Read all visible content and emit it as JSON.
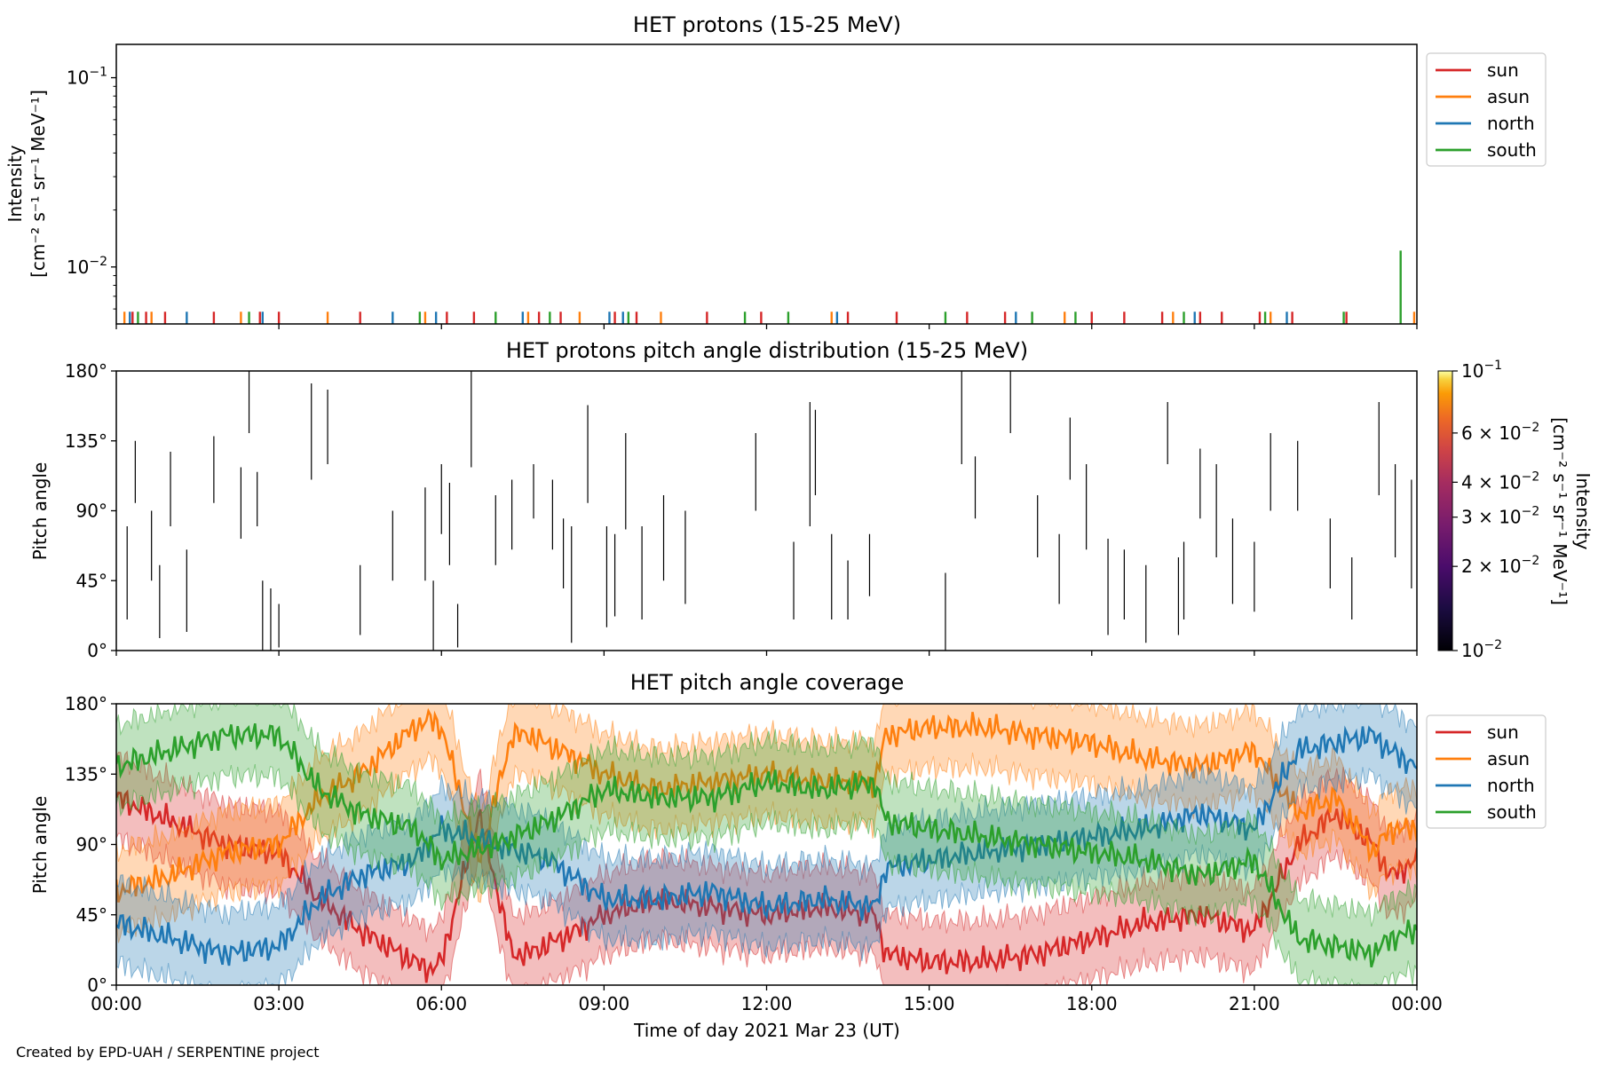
{
  "panels": [
    {
      "title": "HET protons (15-25 MeV)",
      "ylabel_line1": "Intensity",
      "ylabel_line2": "[cm⁻² s⁻¹ sr⁻¹ MeV⁻¹]",
      "yticks": [
        {
          "value": 0.1,
          "base": "10",
          "exp": "−1"
        },
        {
          "value": 0.01,
          "base": "10",
          "exp": "−2"
        }
      ],
      "legend": [
        "sun",
        "asun",
        "north",
        "south"
      ]
    },
    {
      "title": "HET protons pitch angle distribution (15-25 MeV)",
      "ylabel": "Pitch angle",
      "yticks": [
        "0°",
        "45°",
        "90°",
        "135°",
        "180°"
      ],
      "colorbar": {
        "label_line1": "Intensity",
        "label_line2": "[cm⁻² s⁻¹ sr⁻¹ MeV⁻¹]",
        "ticks": [
          {
            "value": 0.1,
            "text": "10",
            "exp": "−1"
          },
          {
            "value": 0.06,
            "text": "6 × 10",
            "exp": "−2"
          },
          {
            "value": 0.04,
            "text": "4 × 10",
            "exp": "−2"
          },
          {
            "value": 0.03,
            "text": "3 × 10",
            "exp": "−2"
          },
          {
            "value": 0.02,
            "text": "2 × 10",
            "exp": "−2"
          },
          {
            "value": 0.01,
            "text": "10",
            "exp": "−2"
          }
        ],
        "colormap": "inferno",
        "range": [
          0.01,
          0.1
        ]
      }
    },
    {
      "title": "HET pitch angle coverage",
      "ylabel": "Pitch angle",
      "yticks": [
        "0°",
        "45°",
        "90°",
        "135°",
        "180°"
      ],
      "legend": [
        "sun",
        "asun",
        "north",
        "south"
      ]
    }
  ],
  "xlabel": "Time of day 2021 Mar 23 (UT)",
  "xticks": [
    "00:00",
    "03:00",
    "06:00",
    "09:00",
    "12:00",
    "15:00",
    "18:00",
    "21:00",
    "00:00"
  ],
  "credit": "Created by EPD-UAH / SERPENTINE project",
  "colors": {
    "sun": "#d62728",
    "asun": "#ff7f0e",
    "north": "#1f77b4",
    "south": "#2ca02c"
  },
  "chart_data": [
    {
      "type": "line",
      "title": "HET protons (15-25 MeV)",
      "ylabel": "Intensity [cm⁻² s⁻¹ sr⁻¹ MeV⁻¹]",
      "yscale": "log",
      "ylim": [
        0.005,
        0.15
      ],
      "xlim": [
        0,
        24
      ],
      "x_unit": "hours UT",
      "series": [
        {
          "name": "sun",
          "x": [
            0.3,
            0.55,
            0.9,
            1.8,
            2.65,
            3.0,
            4.5,
            6.1,
            6.6,
            7.8,
            8.2,
            9.2,
            9.6,
            10.9,
            11.9,
            13.5,
            14.4,
            15.7,
            16.4,
            18.0,
            18.6,
            19.3,
            20.0,
            20.4,
            21.1,
            21.7,
            22.7
          ],
          "y": [
            0.0058,
            0.0058,
            0.0058,
            0.0058,
            0.0058,
            0.0058,
            0.0058,
            0.0058,
            0.0058,
            0.0058,
            0.0058,
            0.0058,
            0.0058,
            0.0058,
            0.0058,
            0.0058,
            0.0058,
            0.0058,
            0.0058,
            0.0058,
            0.0058,
            0.0058,
            0.0058,
            0.0058,
            0.0058,
            0.0058,
            0.0058
          ]
        },
        {
          "name": "asun",
          "x": [
            0.15,
            0.65,
            2.3,
            3.9,
            5.7,
            7.6,
            8.55,
            10.05,
            13.2,
            17.5,
            19.5,
            21.3,
            23.95
          ],
          "y": [
            0.0058,
            0.0058,
            0.0058,
            0.0058,
            0.0058,
            0.0058,
            0.0058,
            0.0058,
            0.0058,
            0.0058,
            0.0058,
            0.0058,
            0.0058
          ]
        },
        {
          "name": "north",
          "x": [
            0.25,
            1.3,
            2.7,
            5.1,
            5.9,
            7.5,
            9.1,
            9.35,
            13.3,
            16.6,
            19.9,
            21.6
          ],
          "y": [
            0.0058,
            0.0058,
            0.0058,
            0.0058,
            0.0058,
            0.0058,
            0.0058,
            0.0058,
            0.0058,
            0.0058,
            0.0058,
            0.0058
          ]
        },
        {
          "name": "south",
          "x": [
            0.4,
            2.45,
            5.6,
            7.0,
            8.0,
            9.45,
            11.6,
            12.4,
            15.3,
            16.9,
            17.7,
            19.7,
            21.2,
            22.65,
            23.7
          ],
          "y": [
            0.0058,
            0.0058,
            0.0058,
            0.0058,
            0.0058,
            0.0058,
            0.0058,
            0.0058,
            0.0058,
            0.0058,
            0.0058,
            0.0058,
            0.0058,
            0.0058,
            0.0122
          ]
        }
      ]
    },
    {
      "type": "heatmap",
      "title": "HET protons pitch angle distribution (15-25 MeV)",
      "ylabel": "Pitch angle",
      "ylim": [
        0,
        180
      ],
      "xlim": [
        0,
        24
      ],
      "x_unit": "hours UT",
      "segments": [
        [
          0.2,
          20,
          80
        ],
        [
          0.35,
          95,
          135
        ],
        [
          0.65,
          45,
          90
        ],
        [
          0.8,
          8,
          55
        ],
        [
          1.0,
          80,
          128
        ],
        [
          1.3,
          12,
          65
        ],
        [
          1.8,
          95,
          138
        ],
        [
          2.3,
          72,
          118
        ],
        [
          2.45,
          140,
          180
        ],
        [
          2.6,
          80,
          115
        ],
        [
          2.7,
          0,
          45
        ],
        [
          2.85,
          0,
          40
        ],
        [
          3.0,
          2,
          30
        ],
        [
          3.6,
          110,
          172
        ],
        [
          3.9,
          120,
          168
        ],
        [
          4.5,
          10,
          55
        ],
        [
          5.1,
          45,
          90
        ],
        [
          5.7,
          45,
          105
        ],
        [
          5.85,
          0,
          45
        ],
        [
          6.0,
          75,
          120
        ],
        [
          6.15,
          55,
          108
        ],
        [
          6.3,
          2,
          30
        ],
        [
          6.55,
          118,
          180
        ],
        [
          7.0,
          55,
          100
        ],
        [
          7.3,
          65,
          110
        ],
        [
          7.7,
          85,
          120
        ],
        [
          8.05,
          65,
          110
        ],
        [
          8.25,
          40,
          85
        ],
        [
          8.4,
          5,
          80
        ],
        [
          8.7,
          95,
          158
        ],
        [
          9.05,
          15,
          80
        ],
        [
          9.2,
          22,
          75
        ],
        [
          9.4,
          78,
          140
        ],
        [
          9.7,
          20,
          80
        ],
        [
          10.1,
          45,
          100
        ],
        [
          10.5,
          30,
          90
        ],
        [
          11.8,
          90,
          140
        ],
        [
          12.5,
          20,
          70
        ],
        [
          12.8,
          80,
          160
        ],
        [
          12.9,
          100,
          155
        ],
        [
          13.2,
          20,
          75
        ],
        [
          13.5,
          20,
          58
        ],
        [
          13.9,
          35,
          75
        ],
        [
          15.3,
          0,
          50
        ],
        [
          15.6,
          120,
          180
        ],
        [
          15.85,
          85,
          125
        ],
        [
          16.5,
          140,
          180
        ],
        [
          17.0,
          60,
          100
        ],
        [
          17.4,
          30,
          75
        ],
        [
          17.6,
          110,
          150
        ],
        [
          17.9,
          65,
          120
        ],
        [
          18.3,
          10,
          72
        ],
        [
          18.6,
          20,
          65
        ],
        [
          19.0,
          5,
          55
        ],
        [
          19.4,
          120,
          160
        ],
        [
          19.6,
          10,
          60
        ],
        [
          19.7,
          20,
          70
        ],
        [
          20.0,
          85,
          130
        ],
        [
          20.3,
          60,
          120
        ],
        [
          20.6,
          30,
          85
        ],
        [
          21.0,
          25,
          70
        ],
        [
          21.3,
          90,
          140
        ],
        [
          21.8,
          90,
          135
        ],
        [
          22.4,
          40,
          85
        ],
        [
          22.8,
          20,
          60
        ],
        [
          23.3,
          100,
          160
        ],
        [
          23.6,
          60,
          120
        ],
        [
          23.9,
          40,
          110
        ]
      ]
    },
    {
      "type": "line",
      "title": "HET pitch angle coverage",
      "ylabel": "Pitch angle",
      "ylim": [
        0,
        180
      ],
      "xlim": [
        0,
        24
      ],
      "x_unit": "hours UT",
      "bands_half_width_deg": 26,
      "series": [
        {
          "name": "sun",
          "x": [
            0,
            1,
            2,
            3,
            3.75,
            4.5,
            5.5,
            5.8,
            6,
            6.7,
            7.3,
            7.6,
            8.5,
            9.0,
            10,
            11,
            12,
            13,
            14,
            14.2,
            15,
            16,
            17,
            18,
            19,
            20,
            21,
            21.8,
            22.5,
            23.2,
            23.5,
            24
          ],
          "y": [
            120,
            105,
            90,
            85,
            55,
            35,
            15,
            10,
            15,
            110,
            20,
            20,
            35,
            45,
            55,
            50,
            45,
            50,
            45,
            20,
            15,
            15,
            20,
            30,
            40,
            45,
            35,
            90,
            110,
            90,
            70,
            80
          ]
        },
        {
          "name": "asun",
          "x": [
            0,
            1,
            2,
            3,
            3.75,
            4.5,
            5.5,
            5.8,
            6,
            6.7,
            7.3,
            7.6,
            8.5,
            9.0,
            10,
            11,
            12,
            13,
            14,
            14.2,
            15,
            16,
            17,
            18,
            19,
            20,
            21,
            21.8,
            22.5,
            23.2,
            23.5,
            24
          ],
          "y": [
            60,
            70,
            85,
            90,
            120,
            135,
            165,
            170,
            165,
            80,
            160,
            160,
            145,
            135,
            125,
            130,
            135,
            130,
            130,
            160,
            165,
            165,
            160,
            155,
            145,
            140,
            150,
            110,
            120,
            85,
            100,
            100
          ]
        },
        {
          "name": "north",
          "x": [
            0,
            1,
            2,
            3,
            3.75,
            4.5,
            5.5,
            6.0,
            7.0,
            8.0,
            9.0,
            10,
            11,
            12,
            13,
            14,
            14.2,
            15,
            16,
            17,
            18,
            19,
            20,
            21,
            21.8,
            22.5,
            23.2,
            23.5,
            24
          ],
          "y": [
            40,
            30,
            20,
            25,
            55,
            70,
            80,
            100,
            90,
            80,
            55,
            55,
            60,
            50,
            55,
            50,
            75,
            80,
            85,
            90,
            95,
            100,
            110,
            100,
            150,
            155,
            160,
            150,
            140
          ]
        },
        {
          "name": "south",
          "x": [
            0,
            1,
            2,
            3,
            3.75,
            4.5,
            5.5,
            6.0,
            7.0,
            8.0,
            9.0,
            10,
            11,
            12,
            13,
            14,
            14.2,
            15,
            16,
            17,
            18,
            19,
            20,
            21,
            21.8,
            22.5,
            23.2,
            23.5,
            24
          ],
          "y": [
            140,
            150,
            160,
            160,
            125,
            110,
            100,
            80,
            90,
            105,
            125,
            120,
            120,
            130,
            125,
            130,
            105,
            100,
            95,
            90,
            85,
            80,
            70,
            80,
            30,
            25,
            20,
            30,
            35
          ]
        }
      ]
    }
  ]
}
